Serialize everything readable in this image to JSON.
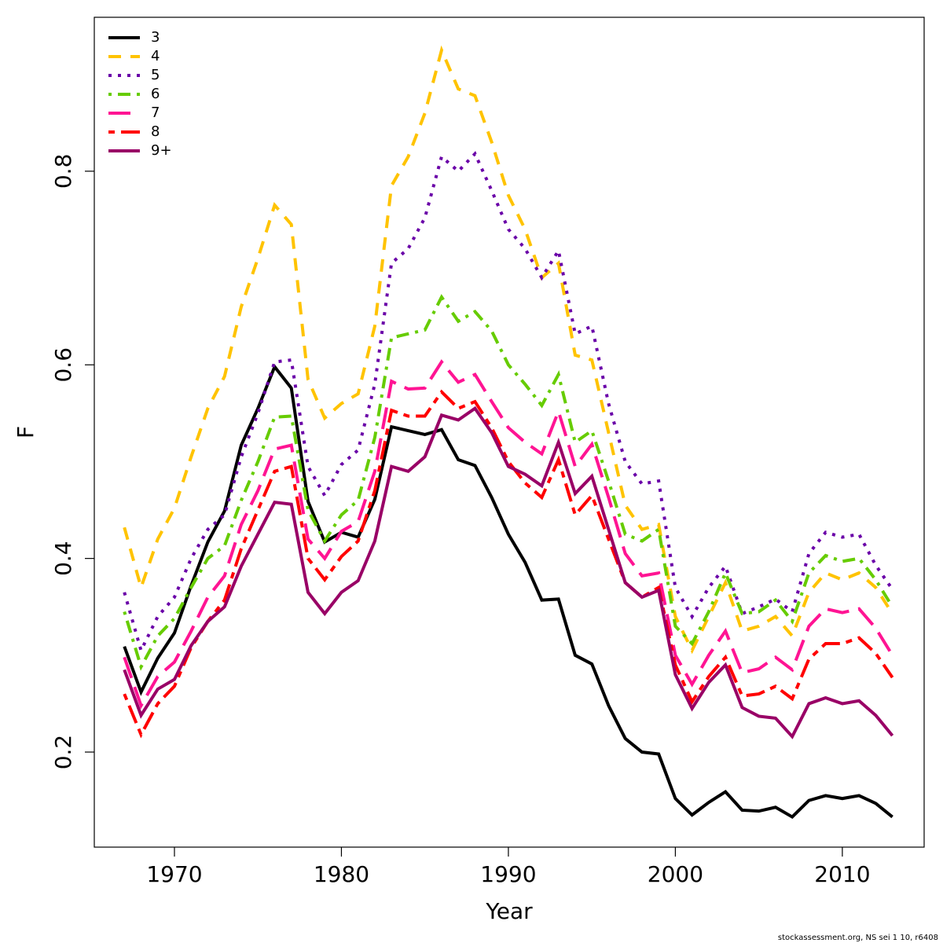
{
  "chart_data": {
    "type": "line",
    "xlabel": "Year",
    "ylabel": "F",
    "footnote": "stockassessment.org, NS sei 1 10, r6408",
    "legend": "top-left",
    "grid": false,
    "xlim": [
      1965.2,
      2014.9
    ],
    "ylim": [
      0.1018,
      0.959
    ],
    "xticks": [
      1970,
      1980,
      1990,
      2000,
      2010
    ],
    "yticks": [
      0.2,
      0.4,
      0.6,
      0.8
    ],
    "x": [
      1967,
      1968,
      1969,
      1970,
      1971,
      1972,
      1973,
      1974,
      1975,
      1976,
      1977,
      1978,
      1979,
      1980,
      1981,
      1982,
      1983,
      1984,
      1985,
      1986,
      1987,
      1988,
      1989,
      1990,
      1991,
      1992,
      1993,
      1994,
      1995,
      1996,
      1997,
      1998,
      1999,
      2000,
      2001,
      2002,
      2003,
      2004,
      2005,
      2006,
      2007,
      2008,
      2009,
      2010,
      2011,
      2012,
      2013
    ],
    "series": [
      {
        "name": "3",
        "color": "#000000",
        "linetype": "solid",
        "values": [
          0.309,
          0.262,
          0.297,
          0.323,
          0.372,
          0.417,
          0.449,
          0.517,
          0.555,
          0.598,
          0.576,
          0.459,
          0.417,
          0.427,
          0.422,
          0.461,
          0.536,
          0.532,
          0.528,
          0.533,
          0.502,
          0.496,
          0.463,
          0.425,
          0.396,
          0.357,
          0.358,
          0.3,
          0.291,
          0.248,
          0.214,
          0.2,
          0.198,
          0.152,
          0.135,
          0.148,
          0.159,
          0.14,
          0.139,
          0.143,
          0.133,
          0.15,
          0.155,
          0.152,
          0.155,
          0.147,
          0.133
        ]
      },
      {
        "name": "4",
        "color": "#FFC300",
        "linetype": "dashed",
        "values": [
          0.432,
          0.37,
          0.42,
          0.452,
          0.505,
          0.555,
          0.588,
          0.66,
          0.71,
          0.765,
          0.745,
          0.585,
          0.545,
          0.56,
          0.57,
          0.64,
          0.785,
          0.815,
          0.86,
          0.925,
          0.885,
          0.878,
          0.83,
          0.775,
          0.74,
          0.69,
          0.705,
          0.61,
          0.605,
          0.53,
          0.455,
          0.43,
          0.435,
          0.34,
          0.305,
          0.34,
          0.375,
          0.325,
          0.33,
          0.34,
          0.32,
          0.365,
          0.385,
          0.378,
          0.385,
          0.37,
          0.343
        ]
      },
      {
        "name": "5",
        "color": "#6A00A8",
        "linetype": "dotted",
        "values": [
          0.365,
          0.305,
          0.34,
          0.36,
          0.4,
          0.43,
          0.445,
          0.505,
          0.55,
          0.603,
          0.605,
          0.495,
          0.465,
          0.497,
          0.512,
          0.58,
          0.705,
          0.72,
          0.752,
          0.815,
          0.8,
          0.818,
          0.78,
          0.74,
          0.72,
          0.69,
          0.718,
          0.632,
          0.64,
          0.56,
          0.5,
          0.477,
          0.48,
          0.37,
          0.34,
          0.37,
          0.392,
          0.343,
          0.35,
          0.358,
          0.345,
          0.405,
          0.427,
          0.422,
          0.425,
          0.393,
          0.368
        ]
      },
      {
        "name": "6",
        "color": "#66CC00",
        "linetype": "dotdash",
        "values": [
          0.345,
          0.288,
          0.32,
          0.338,
          0.37,
          0.4,
          0.413,
          0.46,
          0.5,
          0.546,
          0.547,
          0.45,
          0.418,
          0.445,
          0.46,
          0.525,
          0.628,
          0.632,
          0.636,
          0.67,
          0.645,
          0.655,
          0.635,
          0.6,
          0.58,
          0.558,
          0.59,
          0.52,
          0.532,
          0.48,
          0.425,
          0.418,
          0.43,
          0.33,
          0.312,
          0.345,
          0.385,
          0.343,
          0.345,
          0.357,
          0.335,
          0.385,
          0.403,
          0.397,
          0.4,
          0.378,
          0.35
        ]
      },
      {
        "name": "7",
        "color": "#FF1493",
        "linetype": "longdash",
        "values": [
          0.298,
          0.248,
          0.278,
          0.293,
          0.325,
          0.36,
          0.382,
          0.435,
          0.47,
          0.513,
          0.517,
          0.42,
          0.4,
          0.428,
          0.438,
          0.49,
          0.583,
          0.575,
          0.576,
          0.603,
          0.582,
          0.59,
          0.562,
          0.535,
          0.52,
          0.508,
          0.552,
          0.495,
          0.518,
          0.463,
          0.405,
          0.382,
          0.385,
          0.3,
          0.27,
          0.3,
          0.325,
          0.282,
          0.286,
          0.298,
          0.285,
          0.33,
          0.348,
          0.344,
          0.348,
          0.328,
          0.3
        ]
      },
      {
        "name": "8",
        "color": "#FF0000",
        "linetype": "twodash",
        "values": [
          0.26,
          0.218,
          0.25,
          0.268,
          0.308,
          0.335,
          0.357,
          0.41,
          0.45,
          0.49,
          0.495,
          0.4,
          0.378,
          0.402,
          0.418,
          0.47,
          0.553,
          0.547,
          0.547,
          0.572,
          0.555,
          0.562,
          0.535,
          0.5,
          0.478,
          0.463,
          0.502,
          0.445,
          0.465,
          0.42,
          0.375,
          0.36,
          0.37,
          0.29,
          0.252,
          0.278,
          0.298,
          0.258,
          0.26,
          0.268,
          0.255,
          0.296,
          0.312,
          0.312,
          0.318,
          0.302,
          0.277
        ]
      },
      {
        "name": "9+",
        "color": "#990066",
        "linetype": "solid",
        "values": [
          0.285,
          0.238,
          0.265,
          0.275,
          0.31,
          0.335,
          0.35,
          0.392,
          0.425,
          0.458,
          0.456,
          0.365,
          0.343,
          0.365,
          0.377,
          0.418,
          0.495,
          0.49,
          0.505,
          0.548,
          0.543,
          0.555,
          0.53,
          0.495,
          0.487,
          0.475,
          0.52,
          0.467,
          0.485,
          0.43,
          0.375,
          0.36,
          0.367,
          0.28,
          0.245,
          0.272,
          0.29,
          0.246,
          0.237,
          0.235,
          0.216,
          0.25,
          0.256,
          0.25,
          0.253,
          0.238,
          0.217
        ]
      }
    ]
  }
}
